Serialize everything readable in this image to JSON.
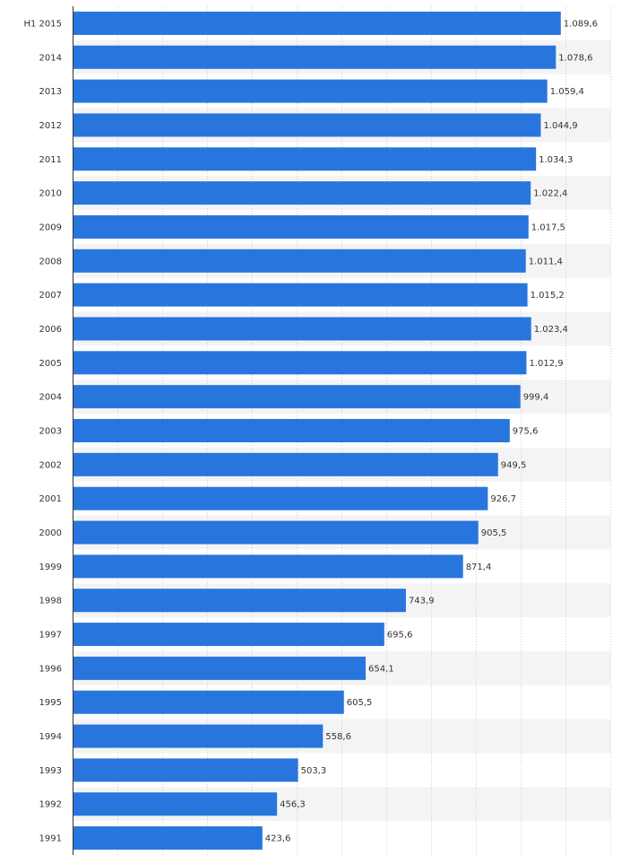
{
  "chart_data": {
    "type": "bar",
    "orientation": "horizontal",
    "title": "",
    "xlabel": "",
    "ylabel": "",
    "categories": [
      "H1 2015",
      "2014",
      "2013",
      "2012",
      "2011",
      "2010",
      "2009",
      "2008",
      "2007",
      "2006",
      "2005",
      "2004",
      "2003",
      "2002",
      "2001",
      "2000",
      "1999",
      "1998",
      "1997",
      "1996",
      "1995",
      "1994",
      "1993",
      "1992",
      "1991"
    ],
    "values": [
      1089.6,
      1078.6,
      1059.4,
      1044.9,
      1034.3,
      1022.4,
      1017.5,
      1011.4,
      1015.2,
      1023.4,
      1012.9,
      999.4,
      975.6,
      949.5,
      926.7,
      905.5,
      871.4,
      743.9,
      695.6,
      654.1,
      605.5,
      558.6,
      503.3,
      456.3,
      423.6
    ],
    "value_labels": [
      "1.089,6",
      "1.078,6",
      "1.059,4",
      "1.044,9",
      "1.034,3",
      "1.022,4",
      "1.017,5",
      "1.011,4",
      "1.015,2",
      "1.023,4",
      "1.012,9",
      "999,4",
      "975,6",
      "949,5",
      "926,7",
      "905,5",
      "871,4",
      "743,9",
      "695,6",
      "654,1",
      "605,5",
      "558,6",
      "503,3",
      "456,3",
      "423,6"
    ],
    "xlim": [
      0,
      1200
    ],
    "x_grid_step": 100,
    "grid": true,
    "x_tick_labels_visible": false,
    "legend": "none",
    "bar_color": "#2876dd",
    "alt_row_color": "#f4f4f4",
    "grid_color": "#d0d0d0",
    "axis_color": "#333333"
  }
}
